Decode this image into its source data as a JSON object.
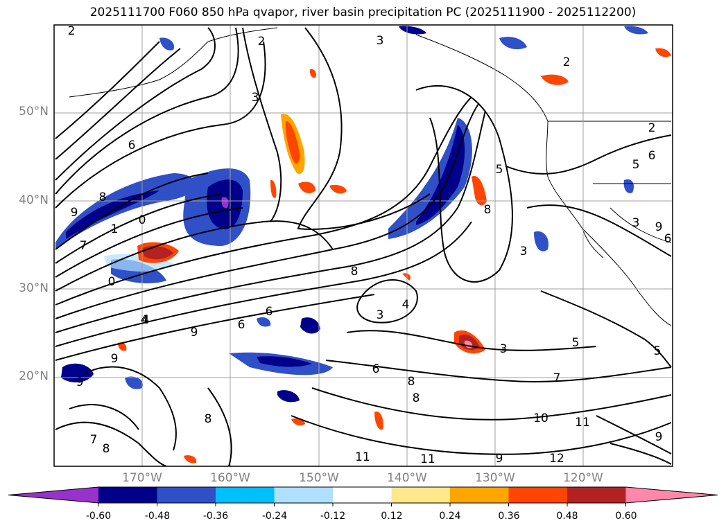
{
  "title": "2025111700 F060 850 hPa qvapor, river basin precipitation PC (2025111900 - 2025112200)",
  "lat_labels": [
    "50°N",
    "40°N",
    "30°N",
    "20°N"
  ],
  "lon_labels": [
    "170°W",
    "160°W",
    "150°W",
    "140°W",
    "130°W",
    "120°W"
  ],
  "contour_labels": [
    "2",
    "3",
    "2",
    "3",
    "2",
    "6",
    "8",
    "9",
    "1",
    "0",
    "7",
    "0",
    "4",
    "9",
    "9",
    "8",
    "7",
    "8",
    "6",
    "3",
    "4",
    "3",
    "8",
    "5",
    "8",
    "3",
    "9",
    "6",
    "5",
    "6",
    "9",
    "5",
    "3",
    "7",
    "8",
    "10",
    "11",
    "11",
    "11",
    "12",
    "9",
    "2",
    "8",
    "6",
    "9",
    "4",
    "5",
    "6"
  ],
  "colorbar": {
    "tick_labels": [
      "-0.60",
      "-0.48",
      "-0.36",
      "-0.24",
      "-0.12",
      "0.12",
      "0.24",
      "0.36",
      "0.48",
      "0.60"
    ],
    "colors": [
      "#9932cc",
      "#00008b",
      "#3050c8",
      "#00bfff",
      "#b0e0ff",
      "#ffffff",
      "#ffe88a",
      "#ffa500",
      "#ff4500",
      "#b22222",
      "#ff88aa"
    ]
  }
}
